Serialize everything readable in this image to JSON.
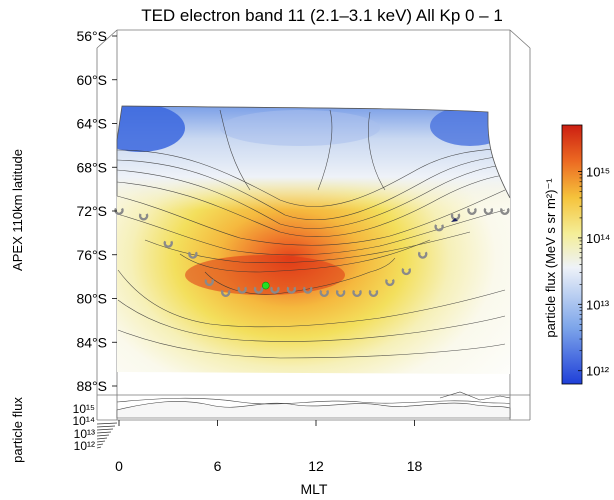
{
  "chart_data": {
    "type": "heatmap",
    "title": "TED electron band 11 (2.1–3.1 keV)  All  Kp 0 – 1",
    "xlabel": "MLT",
    "ylabel": "APEX 110km latitude",
    "x_ticks": [
      "0",
      "6",
      "12",
      "18"
    ],
    "x_tick_values": [
      0,
      6,
      12,
      18
    ],
    "xlim": [
      0,
      24
    ],
    "y_ticks": [
      "56°S",
      "60°S",
      "64°S",
      "68°S",
      "72°S",
      "76°S",
      "80°S",
      "84°S",
      "88°S"
    ],
    "y_tick_values": [
      56,
      60,
      64,
      68,
      72,
      76,
      80,
      84,
      88
    ],
    "ylim": [
      56,
      90
    ],
    "colorbar": {
      "label": "particle flux (MeV s sr m²)⁻¹",
      "ticks": [
        "10¹²",
        "10¹³",
        "10¹⁴",
        "10¹⁵"
      ],
      "log_values": [
        12,
        13,
        14,
        15
      ],
      "range_log": [
        11.8,
        15.7
      ],
      "colors": [
        "#1f3fd8",
        "#7ea6ea",
        "#eef2f8",
        "#f4ee98",
        "#f5c33c",
        "#ec6a22",
        "#cc1f12"
      ]
    },
    "side_panel": {
      "label": "particle flux",
      "ticks": [
        "10¹⁵",
        "10¹⁴",
        "10¹³",
        "10¹²"
      ]
    },
    "oval_boundary_mlt": [
      0,
      1.5,
      3,
      4.5,
      5.5,
      6.5,
      7.5,
      8.5,
      9.5,
      10.5,
      11.5,
      12.5,
      13.5,
      14.5,
      15.5,
      16.5,
      17.5,
      18.5,
      19.5,
      20.5,
      21.5,
      22.5,
      23.5
    ],
    "oval_boundary_lat": [
      72,
      72.5,
      75,
      76,
      78.5,
      79.5,
      79.2,
      79.2,
      79.2,
      79.2,
      79.2,
      79.5,
      79.5,
      79.5,
      79.5,
      78.5,
      77.5,
      76,
      73.5,
      72.5,
      72,
      72,
      72
    ],
    "peak": {
      "mlt": 9,
      "lat": 79
    }
  }
}
